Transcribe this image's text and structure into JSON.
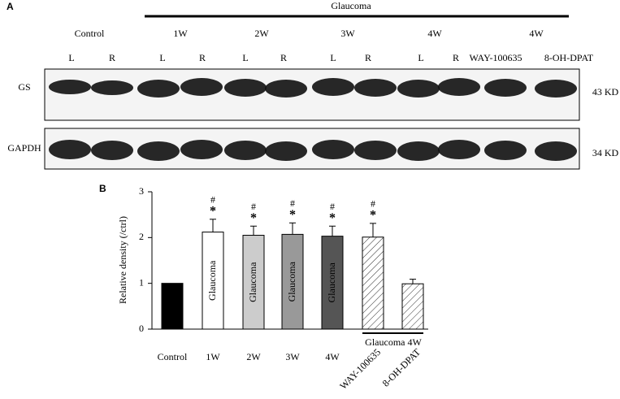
{
  "panel_a": {
    "label": "A",
    "header": "Glaucoma",
    "groups": [
      "Control",
      "1W",
      "2W",
      "3W",
      "4W",
      "4W"
    ],
    "lanes": [
      "L",
      "R",
      "L",
      "R",
      "L",
      "R",
      "L",
      "R",
      "L",
      "R",
      "WAY-100635",
      "8-OH-DPAT"
    ],
    "blots": [
      {
        "name": "GS",
        "size": "43 KD"
      },
      {
        "name": "GAPDH",
        "size": "34 KD"
      }
    ]
  },
  "chart_data": {
    "type": "bar",
    "panel_label": "B",
    "y_label": "Relative density (/ctrl)",
    "categories": [
      "Control",
      "1W",
      "2W",
      "3W",
      "4W",
      "WAY-100635",
      "8-OH-DPAT"
    ],
    "values": [
      1,
      2.12,
      2.05,
      2.07,
      2.03,
      2.01,
      0.99
    ],
    "errors": [
      null,
      0.28,
      0.2,
      0.25,
      0.22,
      0.3,
      0.1
    ],
    "colors": [
      "#000000",
      "#ffffff",
      "#cccccc",
      "#999999",
      "#555555",
      "#ffffff",
      "#ffffff"
    ],
    "hatch": [
      false,
      false,
      false,
      false,
      false,
      true,
      true
    ],
    "bar_labels": [
      null,
      "Glaucoma",
      "Glaucoma",
      "Glaucoma",
      "Glaucoma",
      null,
      null
    ],
    "hash_marks": [
      null,
      "#",
      "#",
      "#",
      "#",
      "#",
      null
    ],
    "star_marks": [
      null,
      "*",
      "*",
      "*",
      "*",
      "*",
      null
    ],
    "group_label": "Glaucoma 4W",
    "ylim": [
      0,
      3
    ],
    "yticks": [
      0,
      1,
      2,
      3
    ]
  }
}
